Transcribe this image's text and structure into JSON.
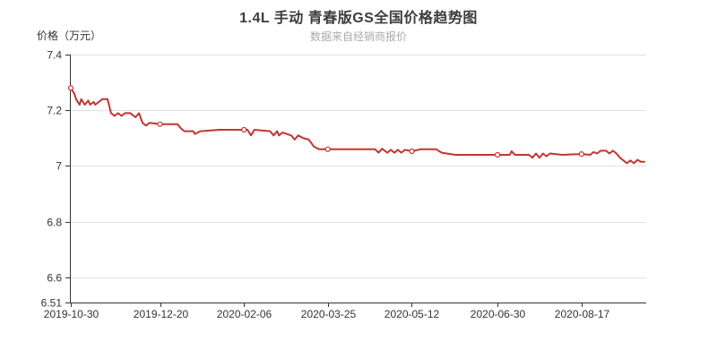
{
  "chart_data": {
    "type": "line",
    "title": "1.4L 手动 青春版GS全国价格趋势图",
    "subtitle": "数据来自经销商报价",
    "ylabel": "价格（万元）",
    "xlabel": "",
    "ylim": [
      6.51,
      7.4
    ],
    "y_ticks": [
      {
        "v": 7.4,
        "label": "7.4",
        "grid": true
      },
      {
        "v": 7.2,
        "label": "7.2",
        "grid": true
      },
      {
        "v": 7.0,
        "label": "7",
        "grid": true
      },
      {
        "v": 6.8,
        "label": "6.8",
        "grid": true
      },
      {
        "v": 6.6,
        "label": "6.6",
        "grid": true
      },
      {
        "v": 6.51,
        "label": "6.51",
        "grid": false
      }
    ],
    "x_ticks": [
      "2019-10-30",
      "2019-12-20",
      "2020-02-06",
      "2020-03-25",
      "2020-05-12",
      "2020-06-30",
      "2020-08-17"
    ],
    "x_range": [
      "2019-10-30",
      "2020-09-22"
    ],
    "grid": true,
    "legend": null,
    "line_color": "#c23531",
    "marker_fill": "#ffffff",
    "grid_color": "#e0e0e0",
    "axis_color": "#333333",
    "marked_points": [
      "2019-10-30",
      "2019-12-20",
      "2020-02-06",
      "2020-03-25",
      "2020-05-12",
      "2020-06-30",
      "2020-08-17"
    ],
    "series": [
      {
        "name": "全国价格",
        "points": [
          [
            "2019-10-30",
            7.28
          ],
          [
            "2019-11-01",
            7.26
          ],
          [
            "2019-11-02",
            7.24
          ],
          [
            "2019-11-04",
            7.22
          ],
          [
            "2019-11-05",
            7.24
          ],
          [
            "2019-11-07",
            7.22
          ],
          [
            "2019-11-09",
            7.235
          ],
          [
            "2019-11-10",
            7.22
          ],
          [
            "2019-11-12",
            7.23
          ],
          [
            "2019-11-13",
            7.22
          ],
          [
            "2019-11-15",
            7.23
          ],
          [
            "2019-11-17",
            7.24
          ],
          [
            "2019-11-20",
            7.24
          ],
          [
            "2019-11-22",
            7.19
          ],
          [
            "2019-11-24",
            7.18
          ],
          [
            "2019-11-26",
            7.19
          ],
          [
            "2019-11-28",
            7.18
          ],
          [
            "2019-11-30",
            7.19
          ],
          [
            "2019-12-03",
            7.19
          ],
          [
            "2019-12-06",
            7.175
          ],
          [
            "2019-12-08",
            7.19
          ],
          [
            "2019-12-10",
            7.155
          ],
          [
            "2019-12-12",
            7.145
          ],
          [
            "2019-12-14",
            7.155
          ],
          [
            "2019-12-20",
            7.15
          ],
          [
            "2019-12-30",
            7.15
          ],
          [
            "2020-01-01",
            7.135
          ],
          [
            "2020-01-03",
            7.125
          ],
          [
            "2020-01-08",
            7.125
          ],
          [
            "2020-01-09",
            7.115
          ],
          [
            "2020-01-12",
            7.125
          ],
          [
            "2020-01-23",
            7.13
          ],
          [
            "2020-02-06",
            7.13
          ],
          [
            "2020-02-08",
            7.13
          ],
          [
            "2020-02-10",
            7.11
          ],
          [
            "2020-02-12",
            7.13
          ],
          [
            "2020-02-21",
            7.125
          ],
          [
            "2020-02-23",
            7.11
          ],
          [
            "2020-02-25",
            7.125
          ],
          [
            "2020-02-26",
            7.11
          ],
          [
            "2020-02-28",
            7.12
          ],
          [
            "2020-03-04",
            7.11
          ],
          [
            "2020-03-06",
            7.095
          ],
          [
            "2020-03-08",
            7.11
          ],
          [
            "2020-03-11",
            7.1
          ],
          [
            "2020-03-14",
            7.095
          ],
          [
            "2020-03-17",
            7.07
          ],
          [
            "2020-03-20",
            7.06
          ],
          [
            "2020-03-25",
            7.06
          ],
          [
            "2020-04-21",
            7.06
          ],
          [
            "2020-04-23",
            7.048
          ],
          [
            "2020-04-25",
            7.062
          ],
          [
            "2020-04-28",
            7.048
          ],
          [
            "2020-04-30",
            7.058
          ],
          [
            "2020-05-02",
            7.048
          ],
          [
            "2020-05-04",
            7.058
          ],
          [
            "2020-05-06",
            7.048
          ],
          [
            "2020-05-08",
            7.058
          ],
          [
            "2020-05-12",
            7.053
          ],
          [
            "2020-05-17",
            7.06
          ],
          [
            "2020-05-26",
            7.06
          ],
          [
            "2020-05-29",
            7.048
          ],
          [
            "2020-06-06",
            7.04
          ],
          [
            "2020-06-21",
            7.04
          ],
          [
            "2020-06-30",
            7.04
          ],
          [
            "2020-07-07",
            7.04
          ],
          [
            "2020-07-08",
            7.053
          ],
          [
            "2020-07-10",
            7.04
          ],
          [
            "2020-07-18",
            7.04
          ],
          [
            "2020-07-20",
            7.03
          ],
          [
            "2020-07-22",
            7.045
          ],
          [
            "2020-07-24",
            7.03
          ],
          [
            "2020-07-26",
            7.045
          ],
          [
            "2020-07-28",
            7.035
          ],
          [
            "2020-07-30",
            7.045
          ],
          [
            "2020-08-06",
            7.04
          ],
          [
            "2020-08-17",
            7.043
          ],
          [
            "2020-08-22",
            7.04
          ],
          [
            "2020-08-24",
            7.05
          ],
          [
            "2020-08-26",
            7.045
          ],
          [
            "2020-08-28",
            7.055
          ],
          [
            "2020-08-31",
            7.055
          ],
          [
            "2020-09-02",
            7.045
          ],
          [
            "2020-09-04",
            7.055
          ],
          [
            "2020-09-06",
            7.045
          ],
          [
            "2020-09-08",
            7.03
          ],
          [
            "2020-09-10",
            7.02
          ],
          [
            "2020-09-12",
            7.01
          ],
          [
            "2020-09-14",
            7.02
          ],
          [
            "2020-09-16",
            7.01
          ],
          [
            "2020-09-18",
            7.022
          ],
          [
            "2020-09-20",
            7.015
          ],
          [
            "2020-09-22",
            7.015
          ]
        ]
      }
    ]
  }
}
